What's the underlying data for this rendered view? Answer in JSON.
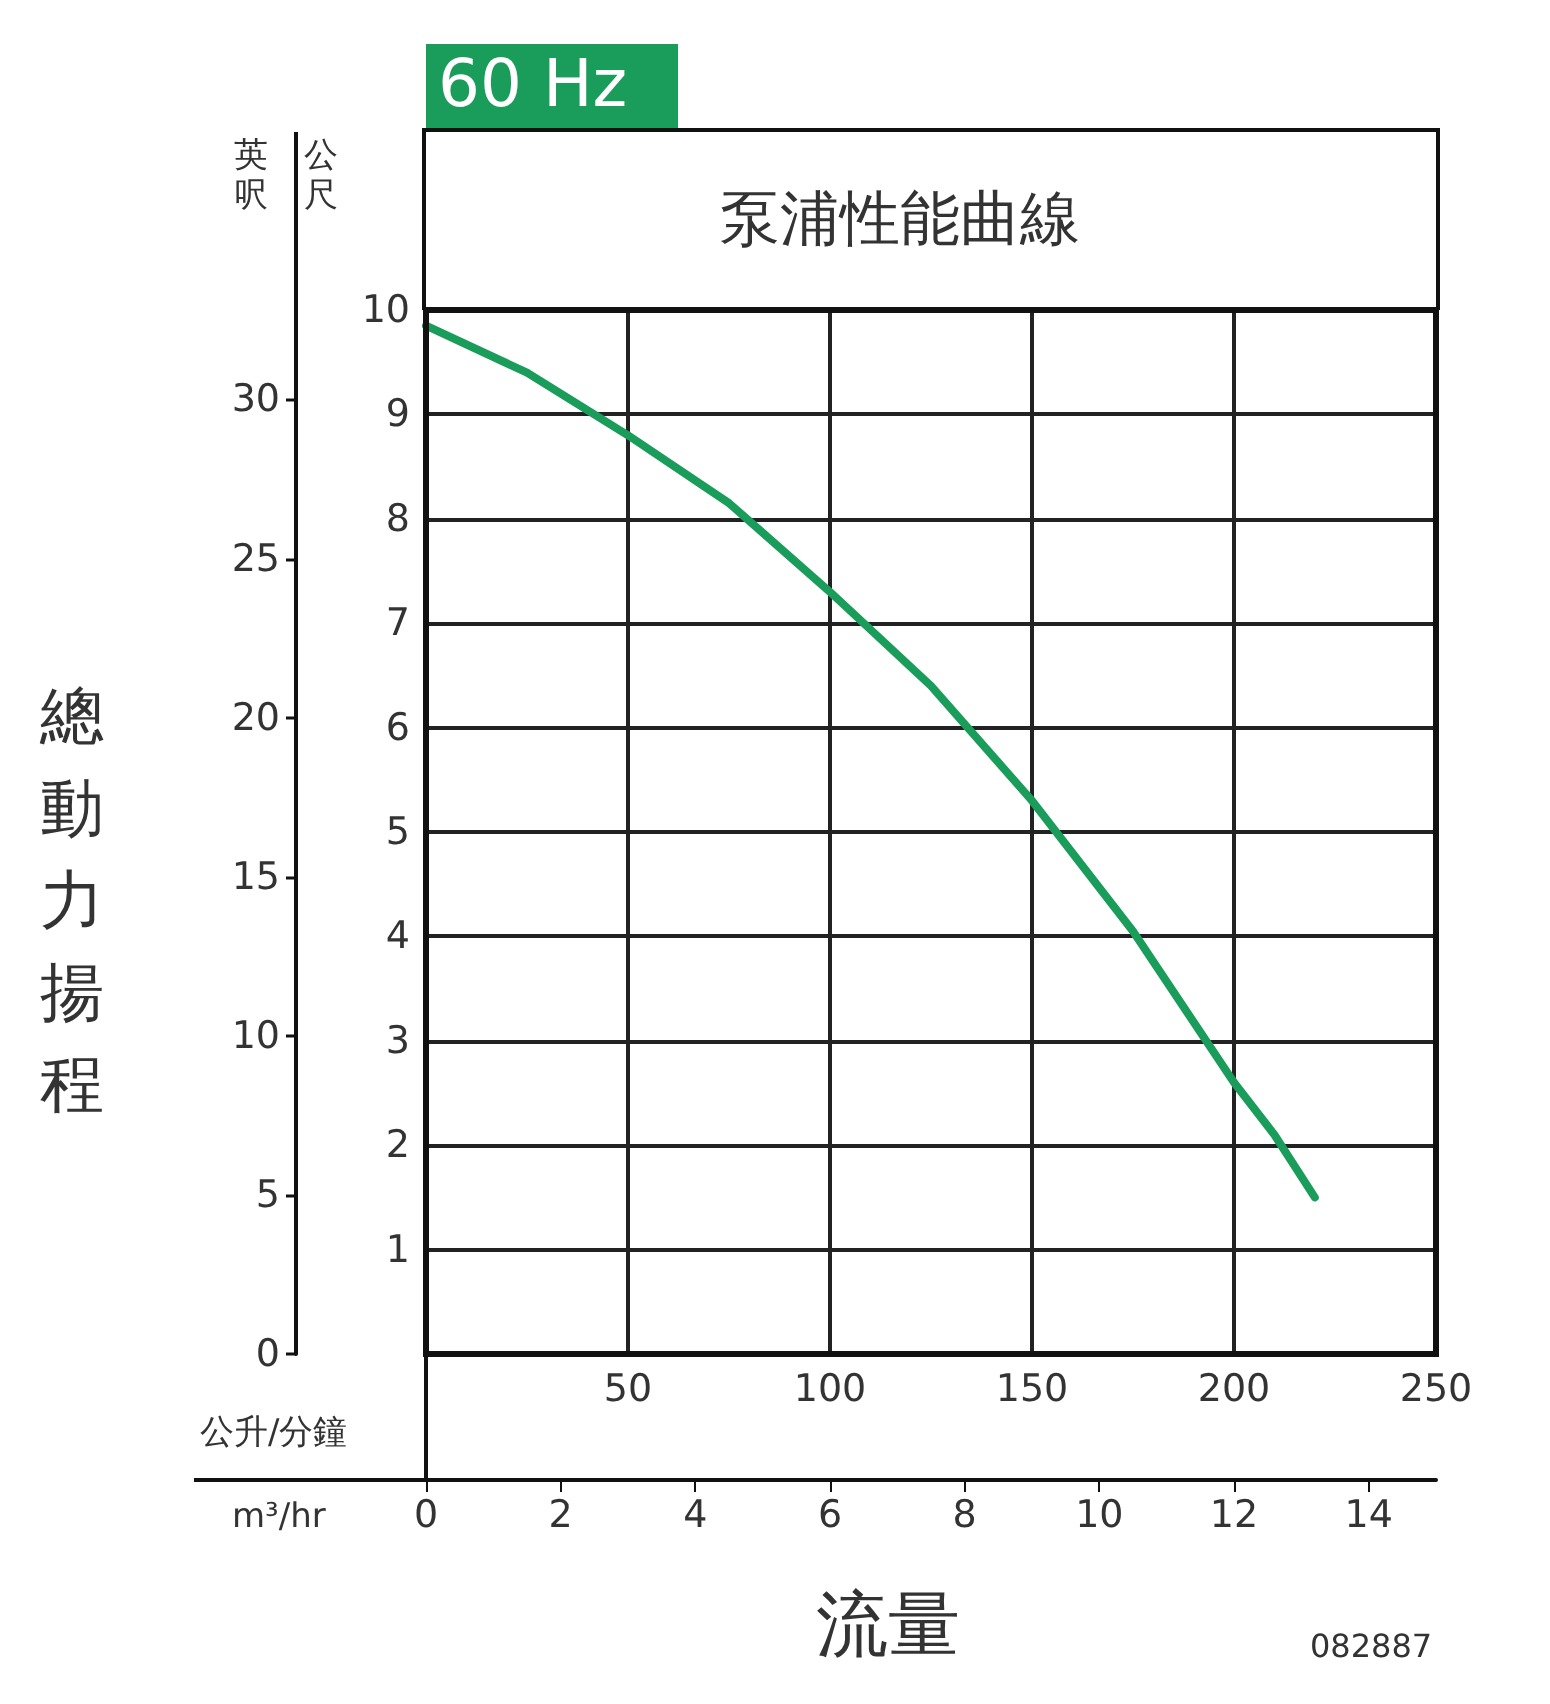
{
  "chart_data": {
    "type": "line",
    "title": "泵浦性能曲線",
    "subtitle": "60 Hz",
    "xlabel": "公升/分鐘",
    "x2label": "m³/hr",
    "ylabel": "公尺",
    "y2label": "英呎",
    "annotations": [
      "總動力揚程",
      "流量",
      "082887"
    ],
    "x": [
      0,
      25,
      50,
      75,
      100,
      125,
      150,
      175,
      200,
      210,
      220
    ],
    "series": [
      {
        "color": "#1a9c5b",
        "values": [
          9.85,
          9.4,
          8.8,
          8.15,
          7.3,
          6.4,
          5.3,
          4.05,
          2.6,
          2.1,
          1.5
        ]
      }
    ],
    "xlim": [
      0,
      250
    ],
    "xticks": [
      {
        "value": 0,
        "label": null
      },
      50,
      100,
      150,
      200,
      250
    ],
    "x2lim": [
      0,
      15
    ],
    "x2ticks": [
      0,
      2,
      4,
      6,
      8,
      10,
      12,
      14
    ],
    "ylim": [
      0,
      10
    ],
    "yticks": [
      {
        "value": 0,
        "label": null
      },
      1,
      2,
      3,
      4,
      5,
      6,
      7,
      8,
      9,
      10
    ],
    "y2lim": [
      0,
      32.81
    ],
    "y2ticks": [
      0,
      5,
      10,
      15,
      20,
      25,
      30
    ],
    "grid": true,
    "marker": "none",
    "line_style": "solid"
  }
}
